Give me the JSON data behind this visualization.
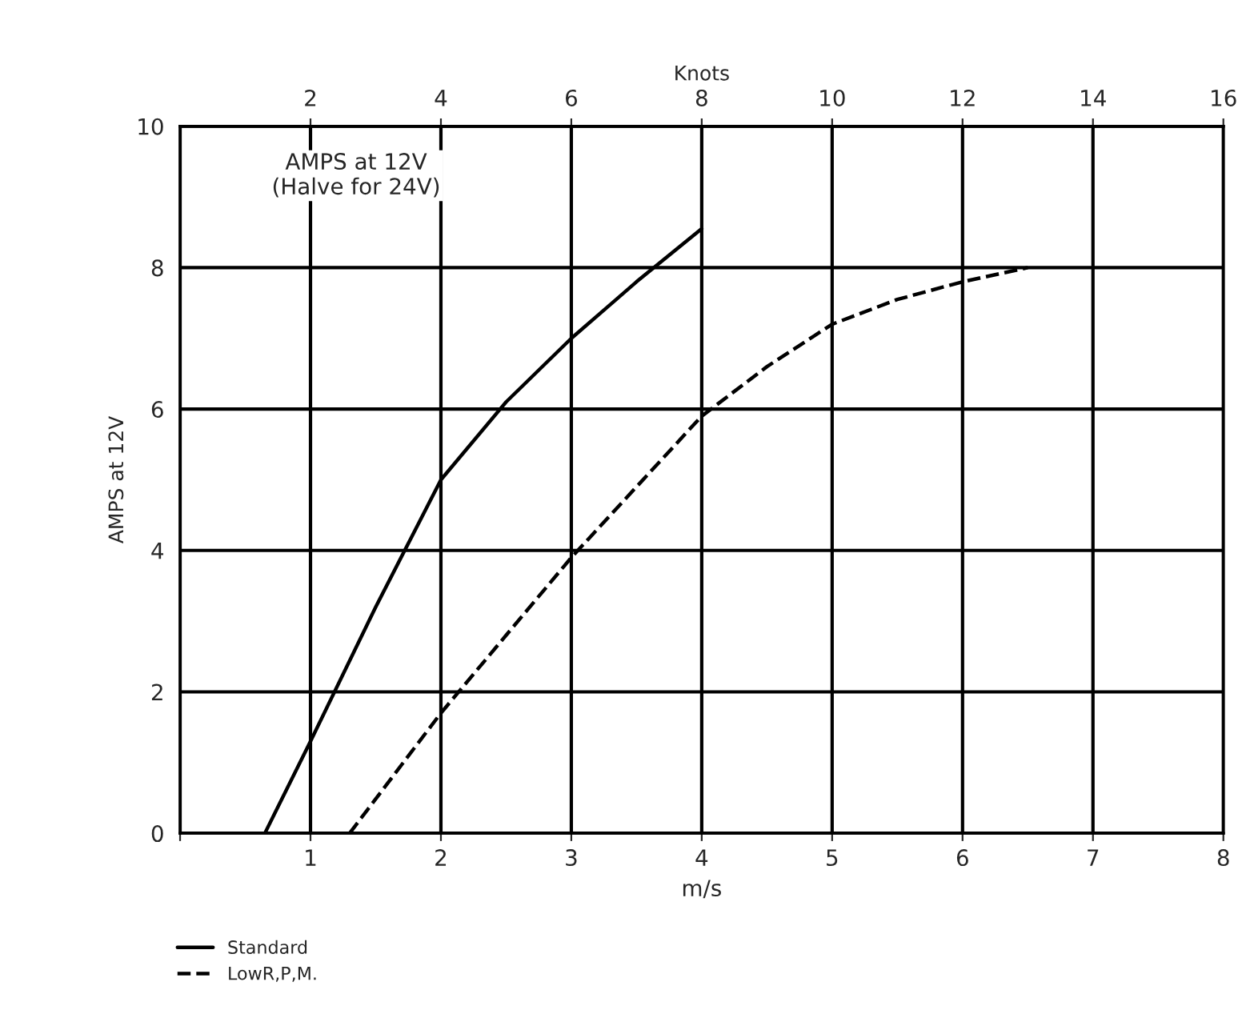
{
  "chart_data": {
    "type": "line",
    "xlabel": "m/s",
    "ylabel": "AMPS at 12V",
    "x2label": "Knots",
    "annotations": [
      "AMPS at 12V\n(Halve for 24V)"
    ],
    "xlim": [
      0,
      8
    ],
    "xticks": [
      {
        "value": 0,
        "label": null
      },
      1,
      2,
      3,
      4,
      5,
      6,
      7,
      8
    ],
    "x2lim": [
      0,
      16
    ],
    "x2ticks": [
      2,
      4,
      6,
      8,
      10,
      12,
      14,
      16
    ],
    "ylim": [
      0,
      10
    ],
    "yticks": [
      0,
      2,
      4,
      6,
      8,
      10
    ],
    "grid": true,
    "legend": "bottom left",
    "series": [
      {
        "name": "Standard",
        "color": "#000000",
        "line_style": "solid",
        "x": [
          0.65,
          1,
          1.5,
          2,
          2.5,
          3,
          3.5,
          4
        ],
        "values": [
          0,
          1.3,
          3.2,
          5.0,
          6.1,
          7.0,
          7.8,
          8.55
        ]
      },
      {
        "name": "LowR,P,M.",
        "color": "#000000",
        "line_style": "dashed",
        "x": [
          1.3,
          2,
          2.5,
          3,
          3.5,
          4,
          4.5,
          5,
          5.5,
          6,
          6.5
        ],
        "values": [
          0,
          1.7,
          2.8,
          3.9,
          4.9,
          5.9,
          6.6,
          7.2,
          7.55,
          7.8,
          8.0
        ]
      }
    ]
  }
}
